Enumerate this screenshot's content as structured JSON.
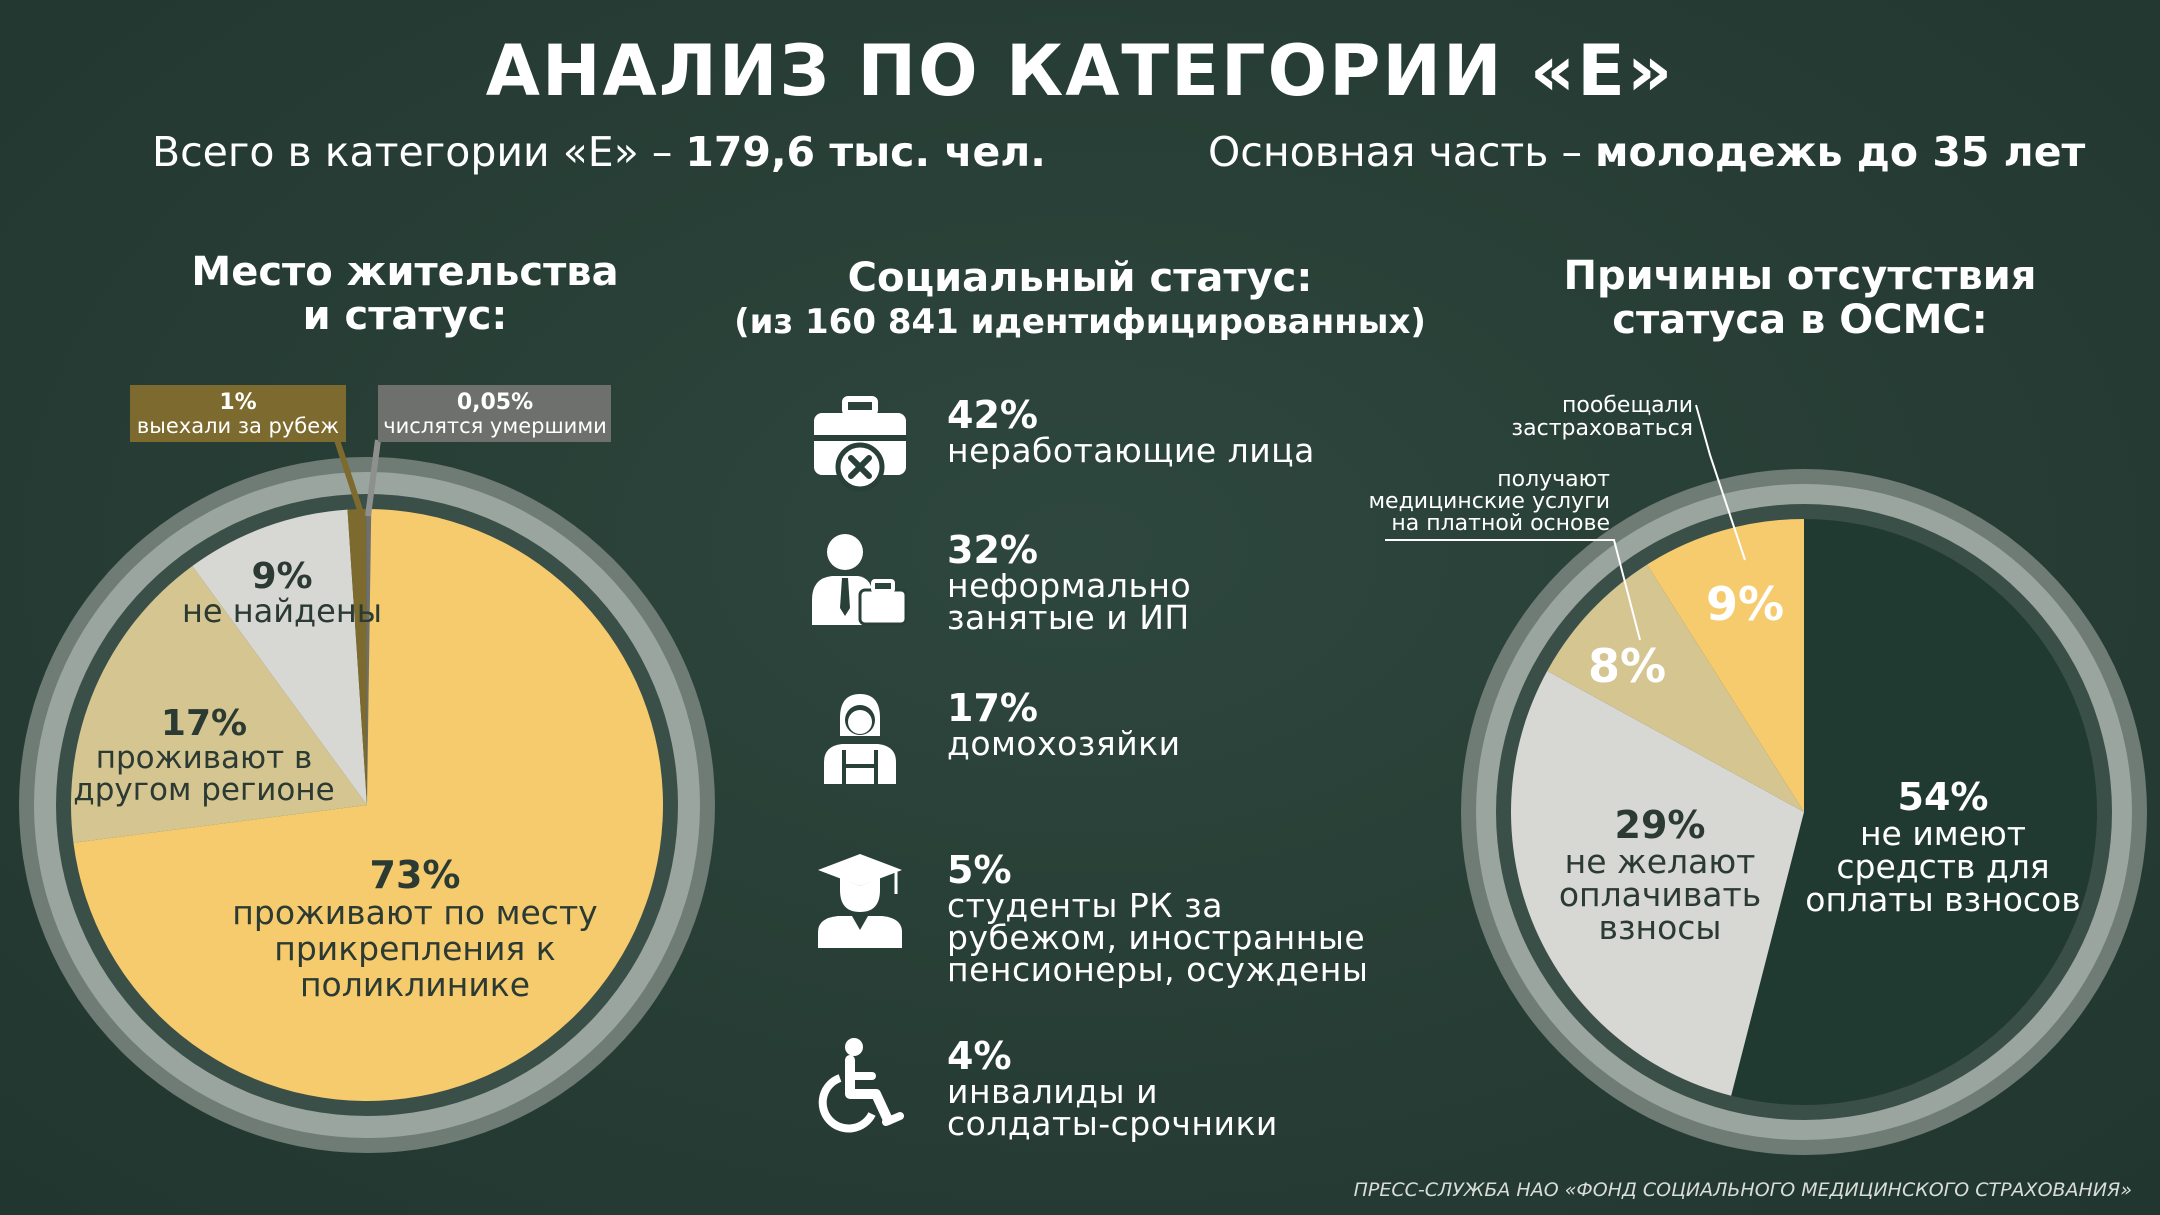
{
  "title": "АНАЛИЗ ПО КАТЕГОРИИ «Е»",
  "summary": {
    "left_prefix": "Всего в категории «Е» – ",
    "left_value": "179,6 тыс. чел.",
    "right_prefix": "Основная часть – ",
    "right_value": "молодежь до 35 лет"
  },
  "sections": {
    "residence_title": "Место жительства\nи статус:",
    "social_title": "Социальный статус:",
    "social_subtitle": "(из 160 841 идентифицированных)",
    "reasons_title": "Причины отсутствия\nстатуса в ОСМС:"
  },
  "colors": {
    "background": "#284037",
    "yellow": "#f5cb6e",
    "tan": "#d5c590",
    "light_gray": "#d7d7d4",
    "dark_green": "#213a31",
    "olive": "#7d6a2e",
    "gray_label": "#6d706d",
    "ring": "#8d9a93"
  },
  "chart_data": [
    {
      "type": "pie",
      "title": "Место жительства и статус:",
      "slices": [
        {
          "label": "проживают по месту прикрепления к поликлинике",
          "pct_label": "73%",
          "value": 73,
          "color": "#f5cb6e"
        },
        {
          "label": "проживают в другом регионе",
          "pct_label": "17%",
          "value": 17,
          "color": "#d5c590"
        },
        {
          "label": "не найдены",
          "pct_label": "9%",
          "value": 9,
          "color": "#d7d7d4"
        },
        {
          "label": "выехали за рубеж",
          "pct_label": "1%",
          "value": 1,
          "color": "#7d6a2e"
        },
        {
          "label": "числятся умершими",
          "pct_label": "0,05%",
          "value": 0.05,
          "color": "#6d706d"
        }
      ]
    },
    {
      "type": "pie",
      "title": "Причины отсутствия статуса в ОСМС:",
      "slices": [
        {
          "label": "не имеют средств для оплаты взносов",
          "pct_label": "54%",
          "value": 54,
          "color": "#213a31"
        },
        {
          "label": "не желают оплачивать взносы",
          "pct_label": "29%",
          "value": 29,
          "color": "#d7d7d4"
        },
        {
          "label": "получают медицинские услуги на платной основе",
          "pct_label": "8%",
          "value": 8,
          "color": "#d5c590"
        },
        {
          "label": "пообещали застраховаться",
          "pct_label": "9%",
          "value": 9,
          "color": "#f5cb6e"
        }
      ]
    }
  ],
  "social_status": [
    {
      "pct": "42%",
      "label": "неработающие лица",
      "icon": "briefcase-x-icon"
    },
    {
      "pct": "32%",
      "label": "неформально\nзанятые и ИП",
      "icon": "person-briefcase-icon"
    },
    {
      "pct": "17%",
      "label": "домохозяйки",
      "icon": "housewife-icon"
    },
    {
      "pct": "5%",
      "label": "студенты РК за\nрубежом, иностранные\nпенсионеры, осуждены",
      "icon": "graduate-icon"
    },
    {
      "pct": "4%",
      "label": "инвалиды и\nсолдаты-срочники",
      "icon": "wheelchair-icon"
    }
  ],
  "footer": "ПРЕСС-СЛУЖБА НАО «ФОНД СОЦИАЛЬНОГО МЕДИЦИНСКОГО СТРАХОВАНИЯ»"
}
